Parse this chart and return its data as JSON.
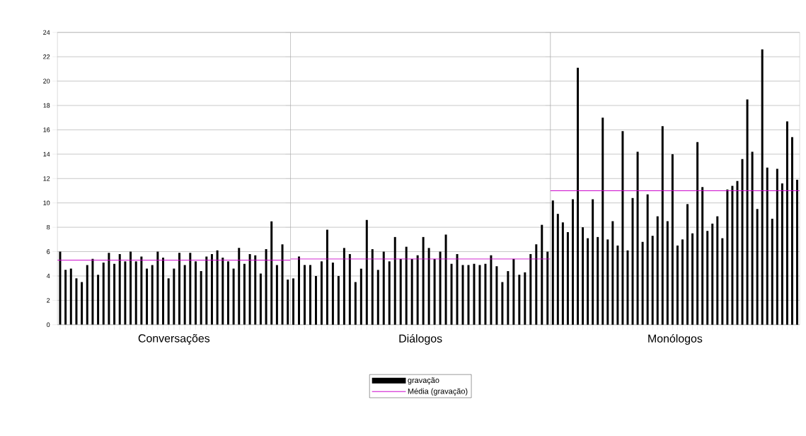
{
  "chart_data": [
    {
      "type": "bar",
      "xlabel": "Conversações",
      "categories": [
        null,
        null,
        null,
        null,
        null,
        null,
        null,
        null,
        null,
        null,
        null,
        null,
        null,
        null,
        null,
        null,
        null,
        null,
        null,
        null,
        null,
        null,
        null,
        null,
        null,
        null,
        null,
        null,
        null,
        null,
        null,
        null,
        null,
        null,
        null,
        null,
        null,
        null,
        null,
        null,
        null,
        null,
        null
      ],
      "series": [
        {
          "color": "#000000",
          "values": [
            6.0,
            4.5,
            4.6,
            3.8,
            3.5,
            4.9,
            5.4,
            4.1,
            5.1,
            5.9,
            5.0,
            5.8,
            5.2,
            6.0,
            5.2,
            5.6,
            4.6,
            4.9,
            6.0,
            5.5,
            3.8,
            4.6,
            5.9,
            4.9,
            5.9,
            5.2,
            4.4,
            5.6,
            5.8,
            6.1,
            5.5,
            5.2,
            4.6,
            6.3,
            5.0,
            5.8,
            5.7,
            4.2,
            6.2,
            8.5,
            4.9,
            6.6,
            3.7
          ]
        }
      ],
      "ylim": [
        0,
        24
      ],
      "yticks": [
        0,
        2,
        4,
        6,
        8,
        10,
        12,
        14,
        16,
        18,
        20,
        22,
        24
      ],
      "grid": "y",
      "ref_lines": [
        {
          "axis": "y",
          "value": 5.3,
          "color": "#cc00cc"
        }
      ]
    },
    {
      "type": "bar",
      "xlabel": "Diálogos",
      "categories": [
        null,
        null,
        null,
        null,
        null,
        null,
        null,
        null,
        null,
        null,
        null,
        null,
        null,
        null,
        null,
        null,
        null,
        null,
        null,
        null,
        null,
        null,
        null,
        null,
        null,
        null,
        null,
        null,
        null,
        null,
        null,
        null,
        null,
        null,
        null,
        null,
        null,
        null,
        null,
        null,
        null,
        null,
        null,
        null,
        null,
        null
      ],
      "series": [
        {
          "name": "gravação",
          "color": "#000000",
          "values": [
            3.8,
            5.6,
            4.9,
            4.9,
            4.0,
            5.2,
            7.8,
            5.1,
            4.0,
            6.3,
            5.8,
            3.5,
            4.6,
            8.6,
            6.2,
            4.5,
            6.0,
            5.2,
            7.2,
            5.4,
            6.4,
            5.4,
            5.7,
            7.2,
            6.3,
            5.4,
            6.0,
            7.4,
            5.0,
            5.8,
            4.9,
            4.9,
            5.0,
            4.9,
            5.0,
            5.7,
            4.8,
            3.5,
            4.4,
            5.4,
            4.1,
            4.3,
            5.8,
            6.6,
            8.2,
            6.0
          ]
        }
      ],
      "ylim": [
        0,
        24
      ],
      "yticks": [
        0,
        2,
        4,
        6,
        8,
        10,
        12,
        14,
        16,
        18,
        20,
        22,
        24
      ],
      "grid": "y",
      "tick_labels": false,
      "legend": "bottom",
      "ref_lines": [
        {
          "axis": "y",
          "value": 5.4,
          "color": "#cc00cc",
          "label": "Média (gravação)"
        }
      ]
    },
    {
      "type": "bar",
      "xlabel": "Monólogos",
      "categories": [
        null,
        null,
        null,
        null,
        null,
        null,
        null,
        null,
        null,
        null,
        null,
        null,
        null,
        null,
        null,
        null,
        null,
        null,
        null,
        null,
        null,
        null,
        null,
        null,
        null,
        null,
        null,
        null,
        null,
        null,
        null,
        null,
        null,
        null,
        null,
        null,
        null,
        null,
        null,
        null,
        null,
        null,
        null,
        null,
        null,
        null,
        null,
        null,
        null,
        null
      ],
      "series": [
        {
          "color": "#000000",
          "values": [
            10.2,
            9.1,
            8.4,
            7.6,
            10.3,
            21.1,
            8.0,
            7.1,
            10.3,
            7.2,
            17.0,
            7.0,
            8.5,
            6.5,
            15.9,
            6.1,
            10.4,
            14.2,
            6.8,
            10.7,
            7.3,
            8.9,
            16.3,
            8.5,
            14.0,
            6.5,
            7.0,
            9.9,
            7.5,
            15.0,
            11.3,
            7.7,
            8.3,
            8.9,
            7.1,
            11.1,
            11.4,
            11.8,
            13.6,
            18.5,
            14.2,
            9.5,
            22.6,
            12.9,
            8.7,
            12.8,
            11.6,
            16.7,
            15.4,
            11.9
          ]
        }
      ],
      "ylim": [
        0,
        24
      ],
      "yticks": [
        0,
        2,
        4,
        6,
        8,
        10,
        12,
        14,
        16,
        18,
        20,
        22,
        24
      ],
      "grid": "y",
      "tick_labels": false,
      "ref_lines": [
        {
          "axis": "y",
          "value": 11.0,
          "color": "#cc00cc"
        }
      ]
    }
  ]
}
